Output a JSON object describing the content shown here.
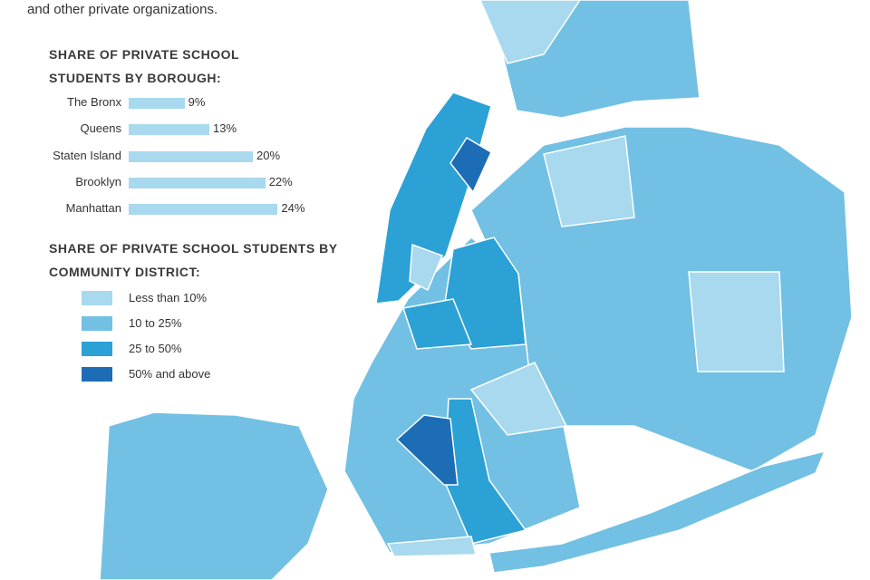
{
  "intro": "and other private organizations.",
  "chart_data": {
    "type": "bar",
    "orientation": "horizontal",
    "title": "SHARE OF PRIVATE SCHOOL STUDENTS BY BOROUGH:",
    "categories": [
      "The Bronx",
      "Queens",
      "Staten Island",
      "Brooklyn",
      "Manhattan"
    ],
    "values": [
      9,
      13,
      20,
      22,
      24
    ],
    "value_labels": [
      "9%",
      "13%",
      "20%",
      "22%",
      "24%"
    ],
    "color": "#a8d9ee"
  },
  "legend": {
    "title": "SHARE OF PRIVATE SCHOOL STUDENTS BY COMMUNITY DISTRICT:",
    "items": [
      {
        "label": "Less than 10%",
        "color": "#a8d9ee"
      },
      {
        "label": "10 to 25%",
        "color": "#72c0e4"
      },
      {
        "label": "25 to 50%",
        "color": "#2ba1d6"
      },
      {
        "label": "50% and above",
        "color": "#1c6db6"
      }
    ]
  }
}
